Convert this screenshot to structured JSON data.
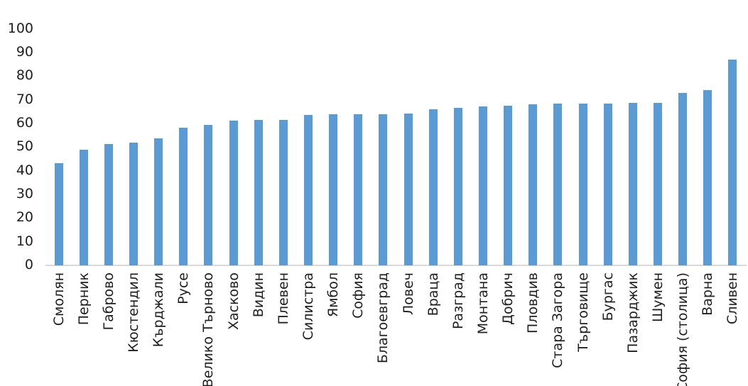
{
  "chart_data": {
    "type": "bar",
    "categories": [
      "Смолян",
      "Перник",
      "Габрово",
      "Кюстендил",
      "Кърджали",
      "Русе",
      "Велико Търново",
      "Хасково",
      "Видин",
      "Плевен",
      "Силистра",
      "Ямбол",
      "София",
      "Благоевград",
      "Ловеч",
      "Враца",
      "Разград",
      "Монтана",
      "Добрич",
      "Пловдив",
      "Стара Загора",
      "Търговище",
      "Бургас",
      "Пазарджик",
      "Шумен",
      "София (столица)",
      "Варна",
      "Сливен"
    ],
    "values": [
      43.1,
      48.6,
      51.2,
      51.6,
      53.4,
      58.1,
      59.1,
      61.0,
      61.3,
      61.4,
      63.3,
      63.8,
      63.8,
      63.8,
      64.1,
      65.9,
      66.3,
      66.9,
      67.2,
      68.0,
      68.1,
      68.1,
      68.2,
      68.5,
      68.5,
      72.8,
      74.0,
      86.8
    ],
    "ylim": [
      0,
      100
    ],
    "yticks": [
      0,
      10,
      20,
      30,
      40,
      50,
      60,
      70,
      80,
      90,
      100
    ],
    "grid": "off",
    "legend": "none",
    "bar_color": "#5B9BD5",
    "axis_line_color": "#D9D9D9",
    "label_color": "#1f1f1f"
  }
}
